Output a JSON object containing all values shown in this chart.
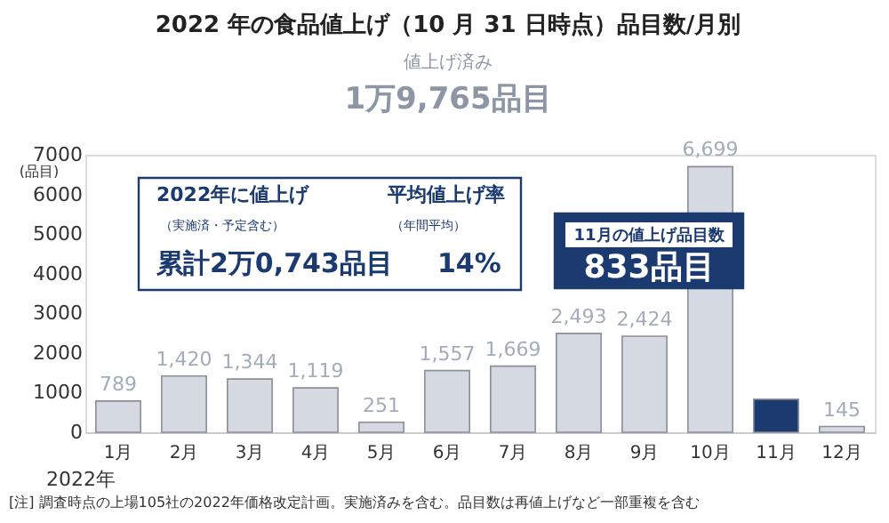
{
  "chart_data": {
    "type": "bar",
    "title": "2022 年の食品値上げ（10 月 31 日時点）品目数/月別",
    "ylabel": "(品目)",
    "categories": [
      "1月",
      "2月",
      "3月",
      "4月",
      "5月",
      "6月",
      "7月",
      "8月",
      "9月",
      "10月",
      "11月",
      "12月"
    ],
    "values": [
      789,
      1420,
      1344,
      1119,
      251,
      1557,
      1669,
      2493,
      2424,
      6699,
      833,
      145
    ],
    "colors": [
      "#d4d9e2",
      "#d4d9e2",
      "#d4d9e2",
      "#d4d9e2",
      "#d4d9e2",
      "#d4d9e2",
      "#d4d9e2",
      "#d4d9e2",
      "#d4d9e2",
      "#d4d9e2",
      "#1b3a70",
      "#d4d9e2"
    ],
    "value_labels": [
      "789",
      "1,420",
      "1,344",
      "1,119",
      "251",
      "1,557",
      "1,669",
      "2,493",
      "2,424",
      "6,699",
      null,
      "145"
    ],
    "ylim": [
      0,
      7000
    ],
    "yticks": [
      0,
      1000,
      2000,
      3000,
      4000,
      5000,
      6000,
      7000
    ],
    "grid": false,
    "annotations": [
      "値上げ済み",
      "1万9,765品目",
      "2022年に値上げ",
      "（実施済・予定含む）",
      "累計2万0,743品目",
      "平均値上げ率",
      "（年間平均）",
      "14%",
      "11月の値上げ品目数",
      "833品目",
      "2022年",
      "[注] 調査時点の上場105社の2022年価格改定計画。実施済みを含む。品目数は再値上げなど一部重複を含む"
    ]
  }
}
